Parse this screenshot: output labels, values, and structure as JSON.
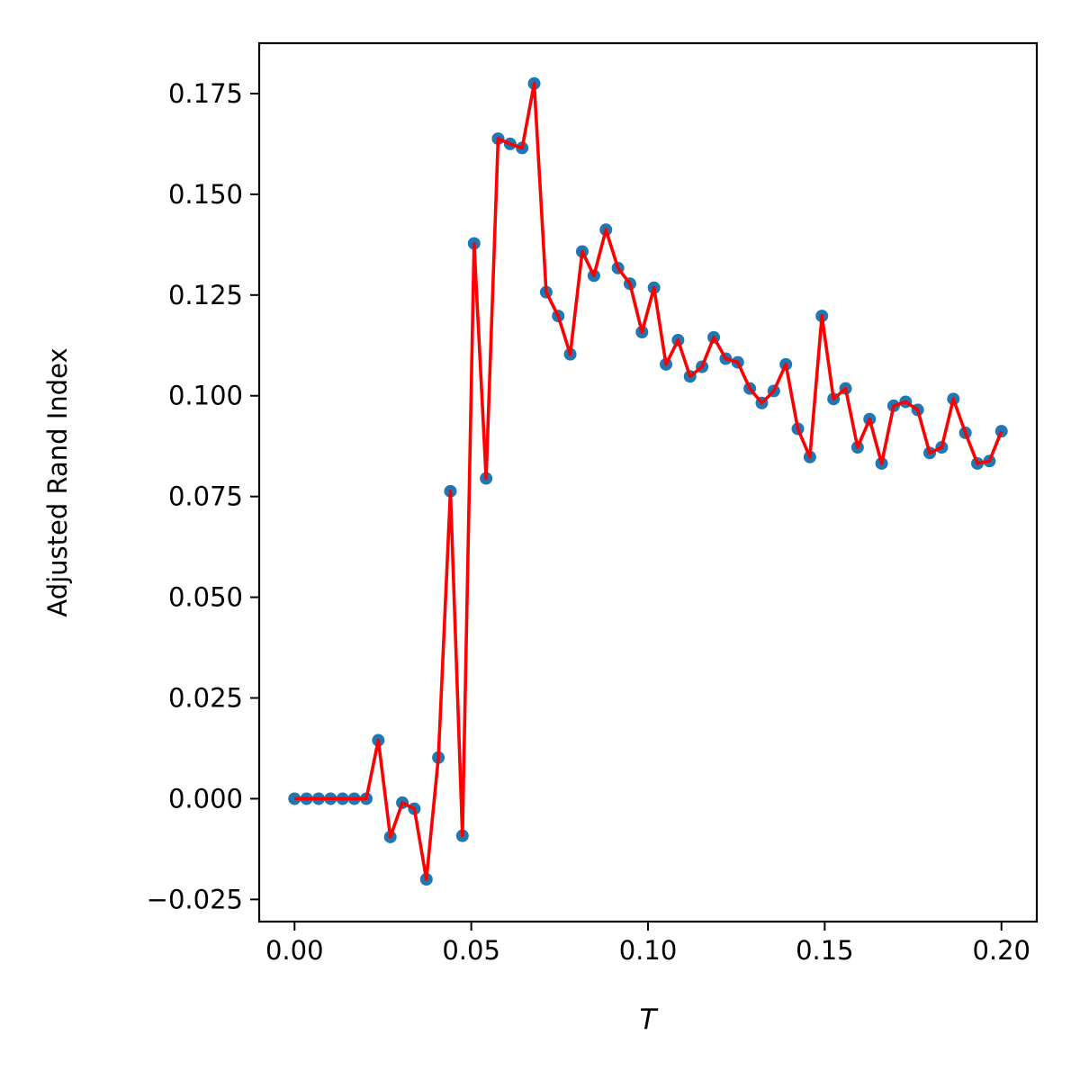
{
  "chart_data": {
    "type": "line",
    "xlabel": "T",
    "ylabel": "Adjusted Rand Index",
    "xlim": [
      -0.01,
      0.21
    ],
    "ylim": [
      -0.0305,
      0.1875
    ],
    "x_ticks": [
      0.0,
      0.05,
      0.1,
      0.15,
      0.2
    ],
    "x_tick_labels": [
      "0.00",
      "0.05",
      "0.10",
      "0.15",
      "0.20"
    ],
    "y_ticks": [
      -0.025,
      0.0,
      0.025,
      0.05,
      0.075,
      0.1,
      0.125,
      0.15,
      0.175
    ],
    "y_tick_labels": [
      "−0.025",
      "0.000",
      "0.025",
      "0.050",
      "0.075",
      "0.100",
      "0.125",
      "0.150",
      "0.175"
    ],
    "grid": false,
    "colors": {
      "marker": "#1f77b4",
      "line": "#ff0000",
      "axes": "#000000"
    },
    "series": [
      {
        "x": [
          0.0,
          0.0034,
          0.0068,
          0.0102,
          0.0136,
          0.0169,
          0.0203,
          0.0237,
          0.0271,
          0.0305,
          0.0339,
          0.0373,
          0.0407,
          0.0441,
          0.0475,
          0.0508,
          0.0542,
          0.0576,
          0.061,
          0.0644,
          0.0678,
          0.0712,
          0.0746,
          0.078,
          0.0814,
          0.0847,
          0.0881,
          0.0915,
          0.0949,
          0.0983,
          0.1017,
          0.1051,
          0.1085,
          0.1119,
          0.1153,
          0.1186,
          0.122,
          0.1254,
          0.1288,
          0.1322,
          0.1356,
          0.139,
          0.1424,
          0.1458,
          0.1492,
          0.1525,
          0.1559,
          0.1593,
          0.1627,
          0.1661,
          0.1695,
          0.1729,
          0.1763,
          0.1797,
          0.1831,
          0.1864,
          0.1898,
          0.1932,
          0.1966,
          0.2
        ],
        "y": [
          0.0,
          0.0,
          0.0,
          0.0,
          0.0,
          0.0,
          0.0,
          0.0145,
          -0.0095,
          -0.001,
          -0.0025,
          -0.02,
          0.0102,
          0.0763,
          -0.0092,
          0.1378,
          0.0795,
          0.1638,
          0.1625,
          0.1615,
          0.1775,
          0.1257,
          0.1198,
          0.1103,
          0.1358,
          0.1298,
          0.1412,
          0.1317,
          0.1278,
          0.1158,
          0.1268,
          0.1078,
          0.1138,
          0.1048,
          0.1072,
          0.1145,
          0.1092,
          0.1083,
          0.1018,
          0.0982,
          0.1012,
          0.1078,
          0.0918,
          0.0848,
          0.1198,
          0.0992,
          0.1018,
          0.0872,
          0.0942,
          0.0832,
          0.0975,
          0.0985,
          0.0965,
          0.0858,
          0.0872,
          0.0992,
          0.0908,
          0.0832,
          0.0838,
          0.0912
        ]
      }
    ]
  }
}
